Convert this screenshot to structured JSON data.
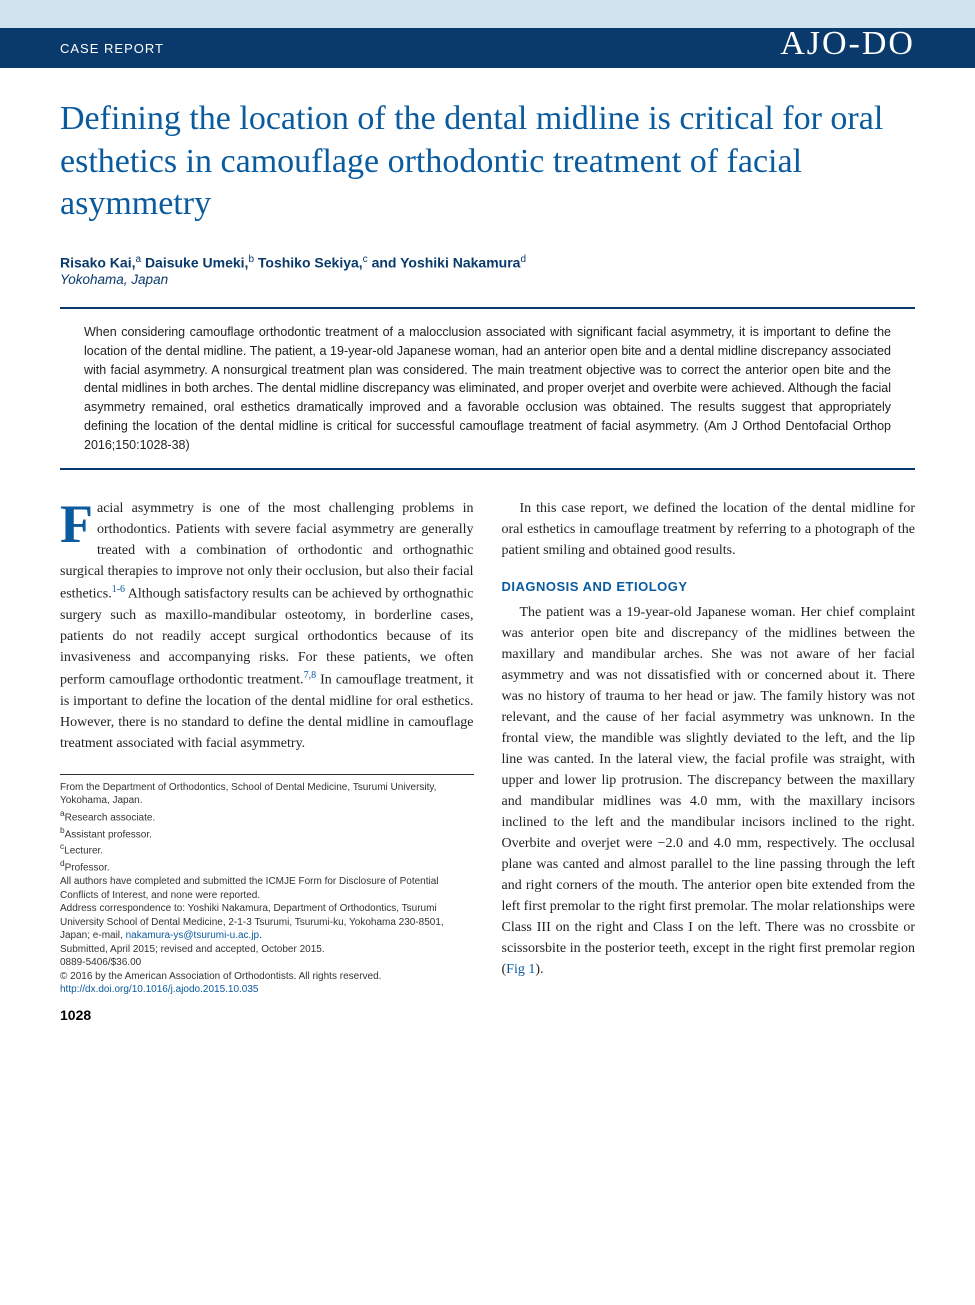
{
  "header": {
    "label": "CASE REPORT",
    "journal_logo": "AJO-DO"
  },
  "title": "Defining the location of the dental midline is critical for oral esthetics in camouflage orthodontic treatment of facial asymmetry",
  "authors_line_parts": [
    {
      "name": "Risako Kai,",
      "sup": "a"
    },
    {
      "name": " Daisuke Umeki,",
      "sup": "b"
    },
    {
      "name": " Toshiko Sekiya,",
      "sup": "c"
    },
    {
      "name": " and Yoshiki Nakamura",
      "sup": "d"
    }
  ],
  "affiliation": "Yokohama, Japan",
  "abstract": "When considering camouflage orthodontic treatment of a malocclusion associated with significant facial asymmetry, it is important to define the location of the dental midline. The patient, a 19-year-old Japanese woman, had an anterior open bite and a dental midline discrepancy associated with facial asymmetry. A nonsurgical treatment plan was considered. The main treatment objective was to correct the anterior open bite and the dental midlines in both arches. The dental midline discrepancy was eliminated, and proper overjet and overbite were achieved. Although the facial asymmetry remained, oral esthetics dramatically improved and a favorable occlusion was obtained. The results suggest that appropriately defining the location of the dental midline is critical for successful camouflage treatment of facial asymmetry. (Am J Orthod Dentofacial Orthop 2016;150:1028-38)",
  "body": {
    "left_col": {
      "dropcap": "F",
      "intro_after_dropcap": "acial asymmetry is one of the most challenging problems in orthodontics. Patients with severe facial asymmetry are generally treated with a combination of orthodontic and orthognathic surgical therapies to improve not only their occlusion, but also their facial esthetics.",
      "ref1": "1-6",
      "intro_cont": " Although satisfactory results can be achieved by orthognathic surgery such as maxillo-mandibular osteotomy, in borderline cases, patients do not readily accept surgical orthodontics because of its invasiveness and accompanying risks. For these patients, we often perform camouflage orthodontic treatment.",
      "ref2": "7,8",
      "intro_end": " In camouflage treatment, it is important to define the location of the dental midline for oral esthetics. However, there is no standard to define the dental midline in camouflage treatment associated with facial asymmetry."
    },
    "right_col": {
      "para1": "In this case report, we defined the location of the dental midline for oral esthetics in camouflage treatment by referring to a photograph of the patient smiling and obtained good results.",
      "section_heading": "DIAGNOSIS AND ETIOLOGY",
      "para2_start": "The patient was a 19-year-old Japanese woman. Her chief complaint was anterior open bite and discrepancy of the midlines between the maxillary and mandibular arches. She was not aware of her facial asymmetry and was not dissatisfied with or concerned about it. There was no history of trauma to her head or jaw. The family history was not relevant, and the cause of her facial asymmetry was unknown. In the frontal view, the mandible was slightly deviated to the left, and the lip line was canted. In the lateral view, the facial profile was straight, with upper and lower lip protrusion. The discrepancy between the maxillary and mandibular midlines was 4.0 mm, with the maxillary incisors inclined to the left and the mandibular incisors inclined to the right. Overbite and overjet were −2.0 and 4.0 mm, respectively. The occlusal plane was canted and almost parallel to the line passing through the left and right corners of the mouth. The anterior open bite extended from the left first premolar to the right first premolar. The molar relationships were Class III on the right and Class I on the left. There was no crossbite or scissorsbite in the posterior teeth, except in the right first premolar region (",
      "fig_ref": "Fig 1",
      "para2_end": ")."
    }
  },
  "footnotes": {
    "from": "From the Department of Orthodontics, School of Dental Medicine, Tsurumi University, Yokohama, Japan.",
    "a": "Research associate.",
    "b": "Assistant professor.",
    "c": "Lecturer.",
    "d": "Professor.",
    "disclosure": "All authors have completed and submitted the ICMJE Form for Disclosure of Potential Conflicts of Interest, and none were reported.",
    "correspondence_pre": "Address correspondence to: Yoshiki Nakamura, Department of Orthodontics, Tsurumi University School of Dental Medicine, 2-1-3 Tsurumi, Tsurumi-ku, Yokohama 230-8501, Japan; e-mail, ",
    "email": "nakamura-ys@tsurumi-u.ac.jp",
    "correspondence_post": ".",
    "submitted": "Submitted, April 2015; revised and accepted, October 2015.",
    "issn": "0889-5406/$36.00",
    "copyright": "© 2016 by the American Association of Orthodontists. All rights reserved.",
    "doi": "http://dx.doi.org/10.1016/j.ajodo.2015.10.035"
  },
  "page_number": "1028",
  "colors": {
    "top_bar": "#d0e4ef",
    "header_band": "#0a3a6b",
    "title": "#0a5a9e",
    "heading": "#0a5a9e",
    "link": "#0a5a9e"
  }
}
